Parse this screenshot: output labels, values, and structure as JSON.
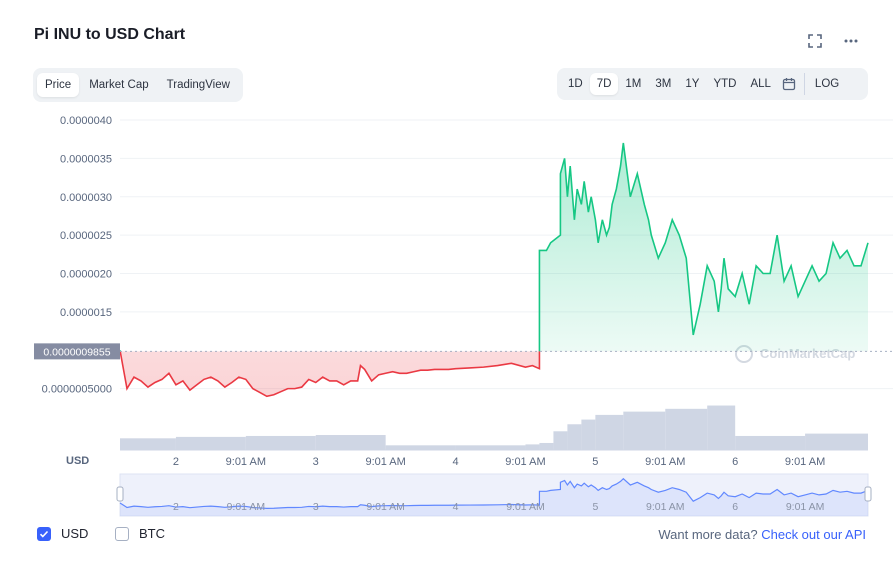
{
  "header": {
    "title": "Pi INU to USD Chart",
    "fullscreen_icon": "fullscreen-icon",
    "more_icon": "more-options-icon"
  },
  "view_tabs": [
    {
      "label": "Price",
      "active": true
    },
    {
      "label": "Market Cap",
      "active": false
    },
    {
      "label": "TradingView",
      "active": false
    }
  ],
  "range_tabs": [
    {
      "label": "1D",
      "active": false
    },
    {
      "label": "7D",
      "active": true
    },
    {
      "label": "1M",
      "active": false
    },
    {
      "label": "3M",
      "active": false
    },
    {
      "label": "1Y",
      "active": false
    },
    {
      "label": "YTD",
      "active": false
    },
    {
      "label": "ALL",
      "active": false
    }
  ],
  "calendar_icon": "calendar-icon",
  "log_label": "LOG",
  "legend": {
    "usd_label": "USD",
    "usd_checked": true,
    "btc_label": "BTC",
    "btc_checked": false
  },
  "api": {
    "prefix": "Want more data?",
    "link": "Check out our API"
  },
  "colors": {
    "up": "#16c784",
    "down": "#ea3943",
    "volume": "#cfd6e4",
    "navigator": "#6188ff",
    "accent": "#3861fb"
  },
  "chart_data": {
    "type": "line",
    "y_unit_label": "USD",
    "ylim": [
      0.0,
      4e-06
    ],
    "y_ticks": [
      "0.0000040",
      "0.0000035",
      "0.0000030",
      "0.0000025",
      "0.0000020",
      "0.0000015",
      "0.0000005000"
    ],
    "y_tick_values": [
      4e-06,
      3.5e-06,
      3e-06,
      2.5e-06,
      2e-06,
      1.5e-06,
      5e-07
    ],
    "reference_label": "0.0000009855",
    "reference_value": 9.855e-07,
    "x_ticks": [
      "2",
      "9:01 AM",
      "3",
      "9:01 AM",
      "4",
      "9:01 AM",
      "5",
      "9:01 AM",
      "6",
      "9:01 AM"
    ],
    "x_tick_days": [
      2.0,
      2.5,
      3.0,
      3.5,
      4.0,
      4.5,
      5.0,
      5.5,
      6.0,
      6.5
    ],
    "xlim_days": [
      1.6,
      6.95
    ],
    "series": [
      {
        "x_days": [
          1.6,
          1.62,
          1.65,
          1.7,
          1.75,
          1.8,
          1.85,
          1.9,
          1.95,
          2.0,
          2.05,
          2.1,
          2.15,
          2.2,
          2.25,
          2.3,
          2.35,
          2.4,
          2.45,
          2.5,
          2.55,
          2.6,
          2.65,
          2.7,
          2.75,
          2.8,
          2.85,
          2.9,
          2.95,
          3.0,
          3.05,
          3.1,
          3.15,
          3.2,
          3.25,
          3.3,
          3.32,
          3.35,
          3.4,
          3.45,
          3.5,
          3.55,
          3.6,
          3.65,
          3.7,
          3.75,
          3.8,
          3.85,
          3.9,
          3.95,
          4.0,
          4.1,
          4.2,
          4.3,
          4.4,
          4.5,
          4.55,
          4.6,
          4.6,
          4.65,
          4.68,
          4.75,
          4.75,
          4.78,
          4.8,
          4.82,
          4.85,
          4.87,
          4.9,
          4.92,
          4.95,
          4.97,
          5.0,
          5.02,
          5.05,
          5.08,
          5.1,
          5.12,
          5.15,
          5.18,
          5.2,
          5.25,
          5.3,
          5.35,
          5.38,
          5.4,
          5.45,
          5.5,
          5.55,
          5.6,
          5.65,
          5.7,
          5.75,
          5.8,
          5.85,
          5.88,
          5.9,
          5.92,
          5.95,
          6.0,
          6.05,
          6.1,
          6.15,
          6.2,
          6.25,
          6.3,
          6.35,
          6.4,
          6.45,
          6.5,
          6.55,
          6.6,
          6.65,
          6.7,
          6.75,
          6.8,
          6.85,
          6.9,
          6.95
        ],
        "y": [
          1e-06,
          8e-07,
          5e-07,
          6.5e-07,
          6e-07,
          5.2e-07,
          5.8e-07,
          6.2e-07,
          7e-07,
          5.5e-07,
          6e-07,
          4.8e-07,
          5.5e-07,
          6.2e-07,
          6.5e-07,
          6e-07,
          5.2e-07,
          5.8e-07,
          6.5e-07,
          6.2e-07,
          5e-07,
          4.5e-07,
          4e-07,
          4.2e-07,
          4.6e-07,
          5e-07,
          5e-07,
          5.2e-07,
          6.2e-07,
          5.8e-07,
          6.5e-07,
          6e-07,
          6e-07,
          5.5e-07,
          6e-07,
          6e-07,
          8e-07,
          7.5e-07,
          6e-07,
          6.8e-07,
          7e-07,
          7.2e-07,
          7e-07,
          7e-07,
          7.2e-07,
          7.4e-07,
          7.4e-07,
          7.5e-07,
          7.5e-07,
          7.5e-07,
          7.6e-07,
          7.7e-07,
          7.8e-07,
          8e-07,
          8.3e-07,
          7.8e-07,
          8e-07,
          7.6e-07,
          2.3e-06,
          2.3e-06,
          2.4e-06,
          2.5e-06,
          3.3e-06,
          3.5e-06,
          3e-06,
          3.4e-06,
          2.7e-06,
          3.1e-06,
          2.9e-06,
          3.2e-06,
          2.8e-06,
          3e-06,
          2.7e-06,
          2.4e-06,
          2.7e-06,
          2.5e-06,
          2.6e-06,
          2.9e-06,
          3.1e-06,
          3.4e-06,
          3.7e-06,
          3e-06,
          3.3e-06,
          2.9e-06,
          2.7e-06,
          2.5e-06,
          2.2e-06,
          2.4e-06,
          2.7e-06,
          2.5e-06,
          2.2e-06,
          1.2e-06,
          1.6e-06,
          2.1e-06,
          1.9e-06,
          1.5e-06,
          1.8e-06,
          2.2e-06,
          1.8e-06,
          1.7e-06,
          2e-06,
          1.6e-06,
          2.1e-06,
          2e-06,
          2e-06,
          2.5e-06,
          1.9e-06,
          2.1e-06,
          1.7e-06,
          1.9e-06,
          2.1e-06,
          1.9e-06,
          2e-06,
          2.4e-06,
          2.2e-06,
          2.3e-06,
          2.1e-06,
          2.1e-06,
          2.4e-06
        ]
      }
    ],
    "volume_x_days": [
      1.6,
      2.0,
      2.5,
      3.0,
      3.5,
      4.0,
      4.5,
      4.6,
      4.7,
      4.8,
      4.9,
      5.0,
      5.2,
      5.5,
      5.8,
      6.0,
      6.5,
      6.95
    ],
    "volume_rel": [
      0.25,
      0.28,
      0.3,
      0.32,
      0.1,
      0.1,
      0.12,
      0.15,
      0.4,
      0.55,
      0.65,
      0.75,
      0.82,
      0.88,
      0.95,
      0.3,
      0.35,
      0.38
    ],
    "watermark": "CoinMarketCap"
  }
}
